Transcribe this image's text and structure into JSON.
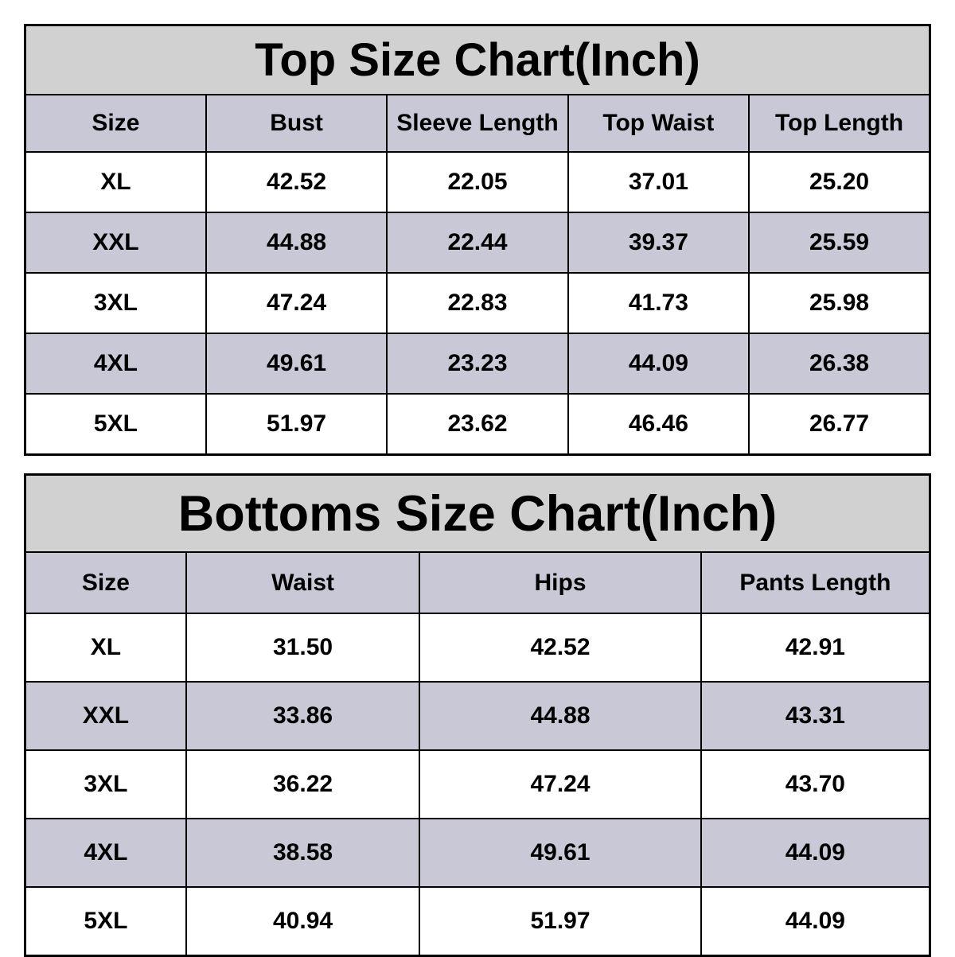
{
  "colors": {
    "title_background": "#d1d1d1",
    "alt_row_background": "#c8c8d6",
    "border": "#000000",
    "text": "#000000",
    "page_background": "#ffffff"
  },
  "chart_data": [
    {
      "type": "table",
      "title": "Top Size Chart(Inch)",
      "columns": [
        "Size",
        "Bust",
        "Sleeve Length",
        "Top Waist",
        "Top Length"
      ],
      "rows": [
        [
          "XL",
          "42.52",
          "22.05",
          "37.01",
          "25.20"
        ],
        [
          "XXL",
          "44.88",
          "22.44",
          "39.37",
          "25.59"
        ],
        [
          "3XL",
          "47.24",
          "22.83",
          "41.73",
          "25.98"
        ],
        [
          "4XL",
          "49.61",
          "23.23",
          "44.09",
          "26.38"
        ],
        [
          "5XL",
          "51.97",
          "23.62",
          "46.46",
          "26.77"
        ]
      ]
    },
    {
      "type": "table",
      "title": "Bottoms Size Chart(Inch)",
      "columns": [
        "Size",
        "Waist",
        "Hips",
        "Pants Length"
      ],
      "rows": [
        [
          "XL",
          "31.50",
          "42.52",
          "42.91"
        ],
        [
          "XXL",
          "33.86",
          "44.88",
          "43.31"
        ],
        [
          "3XL",
          "36.22",
          "47.24",
          "43.70"
        ],
        [
          "4XL",
          "38.58",
          "49.61",
          "44.09"
        ],
        [
          "5XL",
          "40.94",
          "51.97",
          "44.09"
        ]
      ]
    }
  ]
}
